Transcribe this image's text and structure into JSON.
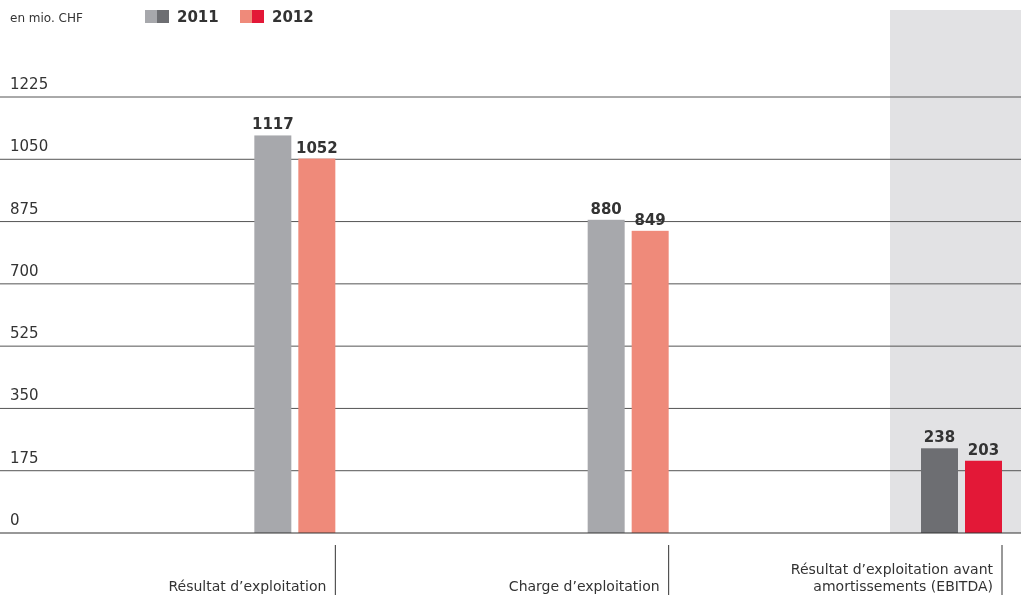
{
  "chart_data": {
    "type": "bar",
    "ylabel": "en mio. CHF",
    "categories": [
      "Résultat d’exploitation",
      "Charge d’exploitation",
      "Résultat d’exploitation avant amortissements (EBITDA)"
    ],
    "series": [
      {
        "name": "2011",
        "colors": [
          "#a7a8ac",
          "#a7a8ac",
          "#6d6e72"
        ],
        "values": [
          1117,
          880,
          238
        ]
      },
      {
        "name": "2012",
        "colors": [
          "#ef8a7a",
          "#ef8a7a",
          "#e31837"
        ],
        "values": [
          1052,
          849,
          203
        ]
      }
    ],
    "ylim": [
      0,
      1225
    ],
    "yticks": [
      0,
      175,
      350,
      525,
      700,
      875,
      1050,
      1225
    ],
    "grid": "y",
    "data_labels": true,
    "legend": "top left",
    "bands": [
      {
        "axis": "x",
        "from": "Résultat d’exploitation avant amortissements (EBITDA)",
        "to": "Résultat d’exploitation avant amortissements (EBITDA)",
        "color": "#e2e2e4"
      }
    ]
  }
}
